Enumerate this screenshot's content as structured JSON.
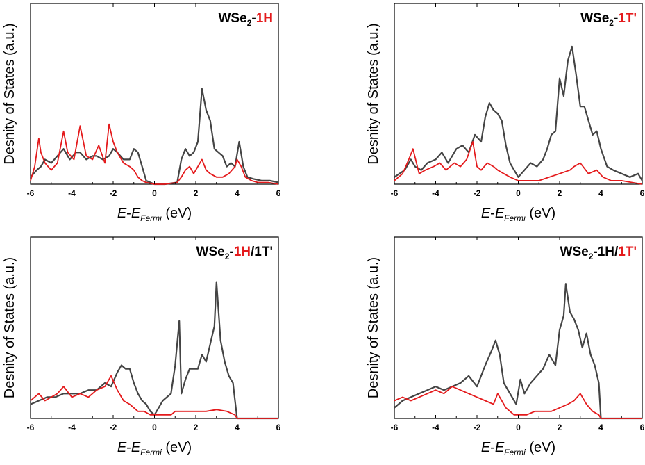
{
  "colors": {
    "total": "#444444",
    "partial": "#e41a1c",
    "highlight": "#e41a1c",
    "frame": "#000000"
  },
  "chart_data": [
    {
      "type": "line",
      "title_parts": [
        {
          "text": "WSe",
          "color": "#000000"
        },
        {
          "text": "2",
          "sub": true,
          "color": "#000000"
        },
        {
          "text": "-",
          "color": "#000000"
        },
        {
          "text": "1H",
          "color": "#e41a1c"
        }
      ],
      "xlabel_parts": [
        {
          "text": "E",
          "italic": true
        },
        {
          "text": "-",
          "italic": false
        },
        {
          "text": "E",
          "italic": true
        },
        {
          "text": "Fermi",
          "italic": true,
          "sub": true
        },
        {
          "text": " (eV)",
          "italic": false
        }
      ],
      "ylabel": "Desnity of States (a.u.)",
      "xlim": [
        -6,
        6
      ],
      "ylim": [
        0,
        100
      ],
      "xticks": [
        "-6",
        "-4",
        "-2",
        "0",
        "2",
        "4",
        "6"
      ],
      "series": [
        {
          "role": "total",
          "x": [
            -6,
            -5.7,
            -5.5,
            -5.3,
            -5,
            -4.7,
            -4.4,
            -4.1,
            -3.8,
            -3.6,
            -3.3,
            -3,
            -2.8,
            -2.5,
            -2.2,
            -2,
            -1.8,
            -1.5,
            -1.2,
            -1,
            -0.8,
            -0.6,
            -0.4,
            0,
            0.5,
            1.1,
            1.3,
            1.5,
            1.7,
            1.9,
            2.1,
            2.3,
            2.5,
            2.7,
            2.9,
            3.1,
            3.3,
            3.5,
            3.7,
            3.9,
            4.1,
            4.3,
            4.5,
            4.8,
            5.2,
            5.6,
            6
          ],
          "y": [
            4,
            8,
            10,
            14,
            12,
            16,
            20,
            14,
            18,
            18,
            14,
            16,
            16,
            14,
            16,
            20,
            18,
            14,
            14,
            20,
            18,
            10,
            2,
            0,
            0,
            1,
            14,
            20,
            16,
            18,
            24,
            54,
            42,
            36,
            20,
            18,
            16,
            10,
            12,
            10,
            24,
            10,
            4,
            3,
            2,
            2,
            1
          ]
        },
        {
          "role": "partial",
          "x": [
            -6,
            -5.8,
            -5.6,
            -5.5,
            -5.3,
            -5,
            -4.7,
            -4.4,
            -4.2,
            -3.9,
            -3.6,
            -3.3,
            -3,
            -2.7,
            -2.4,
            -2.2,
            -2,
            -1.8,
            -1.5,
            -1.2,
            -1,
            -0.8,
            -0.6,
            -0.4,
            0,
            0.5,
            1.1,
            1.3,
            1.5,
            1.7,
            1.9,
            2.1,
            2.3,
            2.5,
            2.7,
            3,
            3.3,
            3.6,
            3.9,
            4,
            4.2,
            4.4,
            4.7,
            5,
            5.5,
            6
          ],
          "y": [
            2,
            10,
            26,
            18,
            12,
            8,
            12,
            30,
            18,
            14,
            33,
            16,
            14,
            22,
            12,
            34,
            24,
            18,
            12,
            10,
            8,
            4,
            2,
            1,
            0,
            0,
            1,
            4,
            8,
            10,
            6,
            10,
            14,
            8,
            6,
            4,
            4,
            6,
            10,
            14,
            10,
            4,
            2,
            1,
            1,
            0
          ]
        }
      ]
    },
    {
      "type": "line",
      "title_parts": [
        {
          "text": "WSe",
          "color": "#000000"
        },
        {
          "text": "2",
          "sub": true,
          "color": "#000000"
        },
        {
          "text": "-",
          "color": "#000000"
        },
        {
          "text": "1T'",
          "color": "#e41a1c"
        }
      ],
      "xlabel_parts": [
        {
          "text": "E",
          "italic": true
        },
        {
          "text": "-",
          "italic": false
        },
        {
          "text": "E",
          "italic": true
        },
        {
          "text": "Fermi",
          "italic": true,
          "sub": true
        },
        {
          "text": " (eV)",
          "italic": false
        }
      ],
      "ylabel": "Desnity of States (a.u.)",
      "xlim": [
        -6,
        6
      ],
      "ylim": [
        0,
        100
      ],
      "xticks": [
        "-6",
        "-4",
        "-2",
        "0",
        "2",
        "4",
        "6"
      ],
      "series": [
        {
          "role": "total",
          "x": [
            -6,
            -5.5,
            -5.2,
            -5,
            -4.7,
            -4.4,
            -4,
            -3.7,
            -3.4,
            -3,
            -2.7,
            -2.4,
            -2.1,
            -1.8,
            -1.6,
            -1.4,
            -1.2,
            -1,
            -0.8,
            -0.6,
            -0.4,
            -0.2,
            0,
            0.3,
            0.6,
            0.9,
            1.2,
            1.4,
            1.6,
            1.8,
            2,
            2.2,
            2.4,
            2.6,
            2.8,
            3,
            3.2,
            3.4,
            3.6,
            3.8,
            4,
            4.3,
            4.6,
            5,
            5.4,
            5.8,
            6
          ],
          "y": [
            4,
            8,
            14,
            10,
            8,
            12,
            14,
            18,
            12,
            20,
            22,
            18,
            28,
            24,
            38,
            46,
            42,
            40,
            36,
            22,
            12,
            8,
            4,
            8,
            12,
            10,
            14,
            20,
            28,
            30,
            60,
            50,
            70,
            78,
            62,
            44,
            44,
            36,
            28,
            30,
            20,
            10,
            8,
            6,
            4,
            6,
            2
          ]
        },
        {
          "role": "partial",
          "x": [
            -6,
            -5.6,
            -5.3,
            -5.1,
            -4.8,
            -4.5,
            -4.1,
            -3.8,
            -3.5,
            -3.1,
            -2.8,
            -2.5,
            -2.2,
            -2,
            -1.8,
            -1.5,
            -1.2,
            -1,
            -0.7,
            -0.4,
            0,
            0.5,
            1,
            1.5,
            2,
            2.5,
            2.7,
            3,
            3.4,
            3.8,
            4.1,
            4.5,
            5,
            5.5,
            6
          ],
          "y": [
            2,
            6,
            14,
            20,
            6,
            8,
            10,
            12,
            8,
            12,
            10,
            14,
            24,
            10,
            8,
            12,
            10,
            8,
            6,
            4,
            2,
            2,
            2,
            4,
            6,
            8,
            10,
            12,
            6,
            8,
            4,
            2,
            2,
            1,
            0
          ]
        }
      ]
    },
    {
      "type": "line",
      "title_parts": [
        {
          "text": "WSe",
          "color": "#000000"
        },
        {
          "text": "2",
          "sub": true,
          "color": "#000000"
        },
        {
          "text": "-",
          "color": "#000000"
        },
        {
          "text": "1H",
          "color": "#e41a1c"
        },
        {
          "text": "/1T'",
          "color": "#000000"
        }
      ],
      "xlabel_parts": [
        {
          "text": "E",
          "italic": true
        },
        {
          "text": "-",
          "italic": false
        },
        {
          "text": "E",
          "italic": true
        },
        {
          "text": "Fermi",
          "italic": true,
          "sub": true
        },
        {
          "text": " (eV)",
          "italic": false
        }
      ],
      "ylabel": "Desnity of States (a.u.)",
      "xlim": [
        -6,
        6
      ],
      "ylim": [
        0,
        100
      ],
      "xticks": [
        "-6",
        "-4",
        "-2",
        "0",
        "2",
        "4",
        "6"
      ],
      "series": [
        {
          "role": "total",
          "x": [
            -6,
            -5.6,
            -5.2,
            -4.8,
            -4.4,
            -4,
            -3.6,
            -3.2,
            -2.8,
            -2.4,
            -2.1,
            -1.8,
            -1.6,
            -1.4,
            -1.2,
            -1,
            -0.8,
            -0.6,
            -0.4,
            -0.2,
            0,
            0.2,
            0.4,
            0.6,
            0.8,
            1,
            1.2,
            1.3,
            1.5,
            1.7,
            1.9,
            2.1,
            2.3,
            2.5,
            2.7,
            2.9,
            3,
            3.2,
            3.4,
            3.6,
            3.8,
            3.9,
            4,
            4.5,
            5,
            5.5,
            6
          ],
          "y": [
            8,
            10,
            12,
            12,
            14,
            14,
            14,
            16,
            16,
            20,
            18,
            26,
            30,
            28,
            28,
            20,
            14,
            10,
            8,
            4,
            2,
            6,
            10,
            12,
            14,
            30,
            55,
            14,
            22,
            28,
            28,
            28,
            36,
            32,
            42,
            52,
            77,
            44,
            32,
            24,
            20,
            10,
            0,
            0,
            0,
            0,
            0
          ]
        },
        {
          "role": "partial",
          "x": [
            -6,
            -5.6,
            -5.3,
            -5,
            -4.7,
            -4.4,
            -4,
            -3.6,
            -3.2,
            -2.8,
            -2.4,
            -2.1,
            -1.8,
            -1.5,
            -1.2,
            -1,
            -0.8,
            -0.5,
            -0.2,
            0,
            0.4,
            0.8,
            1,
            1.5,
            2,
            2.5,
            3,
            3.5,
            3.9,
            4,
            4.5,
            5,
            6
          ],
          "y": [
            10,
            14,
            10,
            12,
            14,
            18,
            12,
            14,
            12,
            16,
            18,
            24,
            16,
            10,
            8,
            6,
            4,
            4,
            2,
            2,
            2,
            2,
            4,
            4,
            4,
            4,
            5,
            4,
            2,
            0,
            0,
            0,
            0
          ]
        }
      ]
    },
    {
      "type": "line",
      "title_parts": [
        {
          "text": "WSe",
          "color": "#000000"
        },
        {
          "text": "2",
          "sub": true,
          "color": "#000000"
        },
        {
          "text": "-1H/",
          "color": "#000000"
        },
        {
          "text": "1T'",
          "color": "#e41a1c"
        }
      ],
      "xlabel_parts": [
        {
          "text": "E",
          "italic": true
        },
        {
          "text": "-",
          "italic": false
        },
        {
          "text": "E",
          "italic": true
        },
        {
          "text": "Fermi",
          "italic": true,
          "sub": true
        },
        {
          "text": " (eV)",
          "italic": false
        }
      ],
      "ylabel": "Desnity of States (a.u.)",
      "xlim": [
        -6,
        6
      ],
      "ylim": [
        0,
        100
      ],
      "xticks": [
        "-6",
        "-4",
        "-2",
        "0",
        "2",
        "4",
        "6"
      ],
      "series": [
        {
          "role": "total",
          "x": [
            -6,
            -5.6,
            -5.2,
            -4.8,
            -4.4,
            -4,
            -3.6,
            -3.2,
            -2.8,
            -2.4,
            -2,
            -1.6,
            -1.3,
            -1.1,
            -0.9,
            -0.7,
            -0.5,
            -0.3,
            -0.1,
            0.1,
            0.3,
            0.6,
            0.9,
            1.2,
            1.5,
            1.8,
            2,
            2.2,
            2.3,
            2.5,
            2.7,
            2.9,
            3.1,
            3.3,
            3.5,
            3.7,
            3.9,
            4,
            4.5,
            5,
            5.5,
            6
          ],
          "y": [
            6,
            10,
            12,
            14,
            16,
            18,
            16,
            18,
            20,
            24,
            18,
            30,
            38,
            44,
            36,
            20,
            16,
            12,
            8,
            22,
            14,
            20,
            24,
            28,
            36,
            30,
            50,
            58,
            76,
            60,
            56,
            50,
            40,
            48,
            36,
            30,
            20,
            0,
            0,
            0,
            0,
            0
          ]
        },
        {
          "role": "partial",
          "x": [
            -6,
            -5.6,
            -5.2,
            -4.8,
            -4.4,
            -4,
            -3.6,
            -3.2,
            -2.8,
            -2.4,
            -2,
            -1.6,
            -1.2,
            -1,
            -0.8,
            -0.6,
            -0.4,
            -0.2,
            0,
            0.4,
            0.8,
            1.2,
            1.6,
            2,
            2.4,
            2.7,
            3,
            3.3,
            3.6,
            3.9,
            4,
            4.5,
            5,
            6
          ],
          "y": [
            10,
            12,
            10,
            12,
            14,
            16,
            14,
            18,
            16,
            14,
            12,
            10,
            8,
            14,
            10,
            6,
            4,
            2,
            2,
            2,
            4,
            4,
            4,
            6,
            8,
            10,
            14,
            8,
            4,
            2,
            0,
            0,
            0,
            0
          ]
        }
      ]
    }
  ]
}
